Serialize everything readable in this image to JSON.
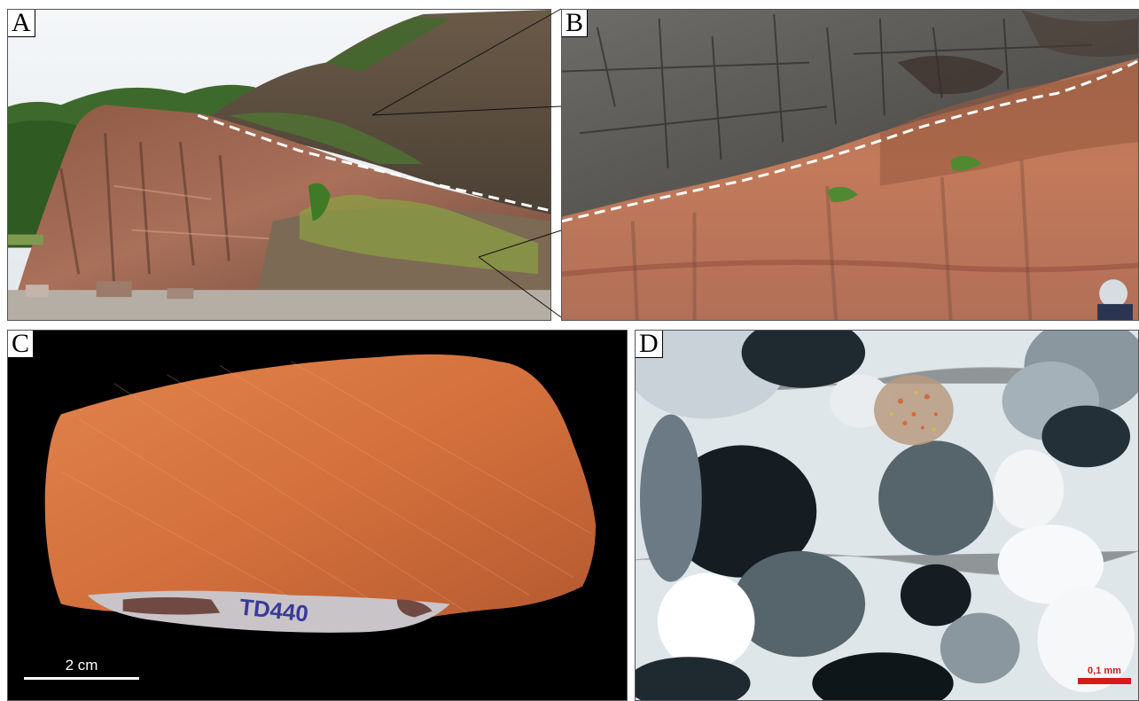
{
  "panels": {
    "a": {
      "label": "A"
    },
    "b": {
      "label": "B"
    },
    "c": {
      "label": "C",
      "scale_bar": "2 cm",
      "specimen_marking": "TD440"
    },
    "d": {
      "label": "D",
      "scale_bar": "0,1 mm"
    }
  },
  "colors": {
    "sky": "#eef2f5",
    "sandstone": "#b86a4e",
    "basalt": "#5a5a58",
    "vegetation": "#4f7a2e",
    "specimen": "#d8713e",
    "scale_bar_d": "#d41a1a",
    "contact_line": "#ffffff"
  }
}
